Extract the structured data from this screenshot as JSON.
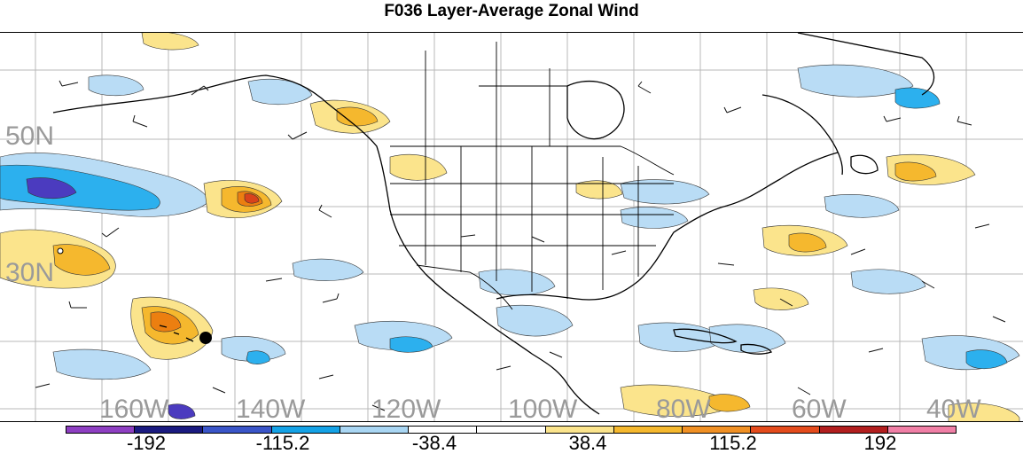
{
  "title": "F036 Layer-Average Zonal Wind",
  "map": {
    "lat_labels": [
      "50N",
      "30N"
    ],
    "lon_labels": [
      "160W",
      "140W",
      "120W",
      "100W",
      "80W",
      "60W",
      "40W"
    ],
    "colors": {
      "neg_strong": "#4b3bbf",
      "neg_mid": "#1f7fd6",
      "neg_light": "#2cb0ee",
      "neg_pale": "#b9dcf5",
      "pos_pale": "#fbe48c",
      "pos_light": "#f5b82e",
      "pos_mid": "#ec7f10",
      "pos_strong": "#d9431b",
      "coast": "#000000",
      "grid": "#b8b8b8"
    }
  },
  "colorbar": {
    "colors": [
      "#8e3fc2",
      "#1a1a80",
      "#3a55c8",
      "#14a2e6",
      "#a9d6f3",
      "#ffffff",
      "#ffffff",
      "#fbe48c",
      "#f5b82e",
      "#f09024",
      "#e44b1c",
      "#b21e1e",
      "#f07fa6"
    ],
    "labels": [
      "-192",
      "-115.2",
      "-38.4",
      "38.4",
      "115.2",
      "192"
    ]
  }
}
